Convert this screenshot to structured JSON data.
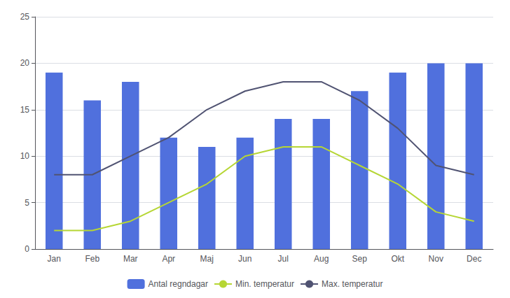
{
  "chart_data": {
    "type": "bar",
    "categories": [
      "Jan",
      "Feb",
      "Mar",
      "Apr",
      "Maj",
      "Jun",
      "Jul",
      "Aug",
      "Sep",
      "Okt",
      "Nov",
      "Dec"
    ],
    "series": [
      {
        "name": "Antal regndagar",
        "type": "bar",
        "values": [
          19,
          16,
          18,
          12,
          11,
          12,
          14,
          14,
          17,
          19,
          20,
          20
        ]
      },
      {
        "name": "Min. temperatur",
        "type": "line",
        "values": [
          2,
          2,
          3,
          5,
          7,
          10,
          11,
          11,
          9,
          7,
          4,
          3
        ]
      },
      {
        "name": "Max. temperatur",
        "type": "line",
        "values": [
          8,
          8,
          10,
          12,
          15,
          17,
          18,
          18,
          16,
          13,
          9,
          8
        ]
      }
    ],
    "ylim": [
      0,
      25
    ],
    "yticks": [
      0,
      5,
      10,
      15,
      20,
      25
    ],
    "grid": true,
    "legend": "bottom"
  }
}
